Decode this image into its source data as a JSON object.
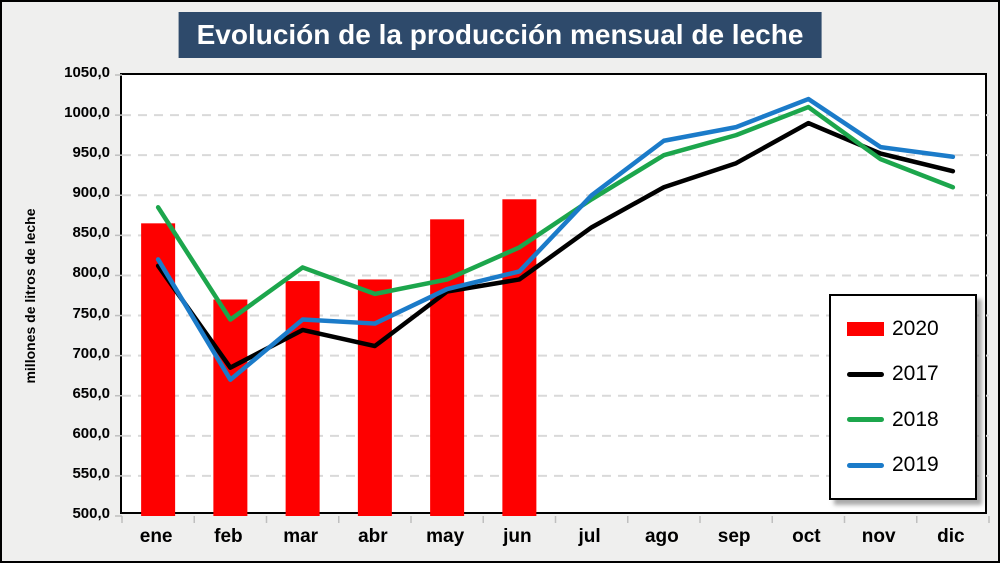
{
  "chart_data": {
    "type": "combo",
    "title": "Evolución de la producción mensual de leche",
    "xlabel": "",
    "ylabel": "millones de litros de leche",
    "ylim": [
      500,
      1050
    ],
    "ytick_step": 50,
    "ytick_labels": [
      "1050,0",
      "1000,0",
      "950,0",
      "900,0",
      "850,0",
      "800,0",
      "750,0",
      "700,0",
      "650,0",
      "600,0",
      "550,0",
      "500,0"
    ],
    "categories": [
      "ene",
      "feb",
      "mar",
      "abr",
      "may",
      "jun",
      "jul",
      "ago",
      "sep",
      "oct",
      "nov",
      "dic"
    ],
    "grid": true,
    "legend_position": "middle-right",
    "series": [
      {
        "name": "2020",
        "type": "bar",
        "color": "#fe0000",
        "values": [
          865,
          770,
          793,
          795,
          870,
          895,
          null,
          null,
          null,
          null,
          null,
          null
        ]
      },
      {
        "name": "2017",
        "type": "line",
        "color": "#000000",
        "values": [
          812,
          685,
          732,
          712,
          780,
          795,
          860,
          910,
          940,
          990,
          952,
          930
        ]
      },
      {
        "name": "2018",
        "type": "line",
        "color": "#1ca64c",
        "values": [
          885,
          745,
          810,
          777,
          795,
          835,
          895,
          950,
          975,
          1010,
          945,
          910
        ]
      },
      {
        "name": "2019",
        "type": "line",
        "color": "#1b7bc9",
        "values": [
          820,
          670,
          745,
          740,
          783,
          805,
          900,
          968,
          985,
          1020,
          960,
          948
        ]
      }
    ],
    "colors": {
      "title_background": "#2e4a6b",
      "title_text": "#ffffff",
      "page_background": "#efefee",
      "plot_background": "#ffffff",
      "gridline": "#d9d9d9"
    }
  }
}
